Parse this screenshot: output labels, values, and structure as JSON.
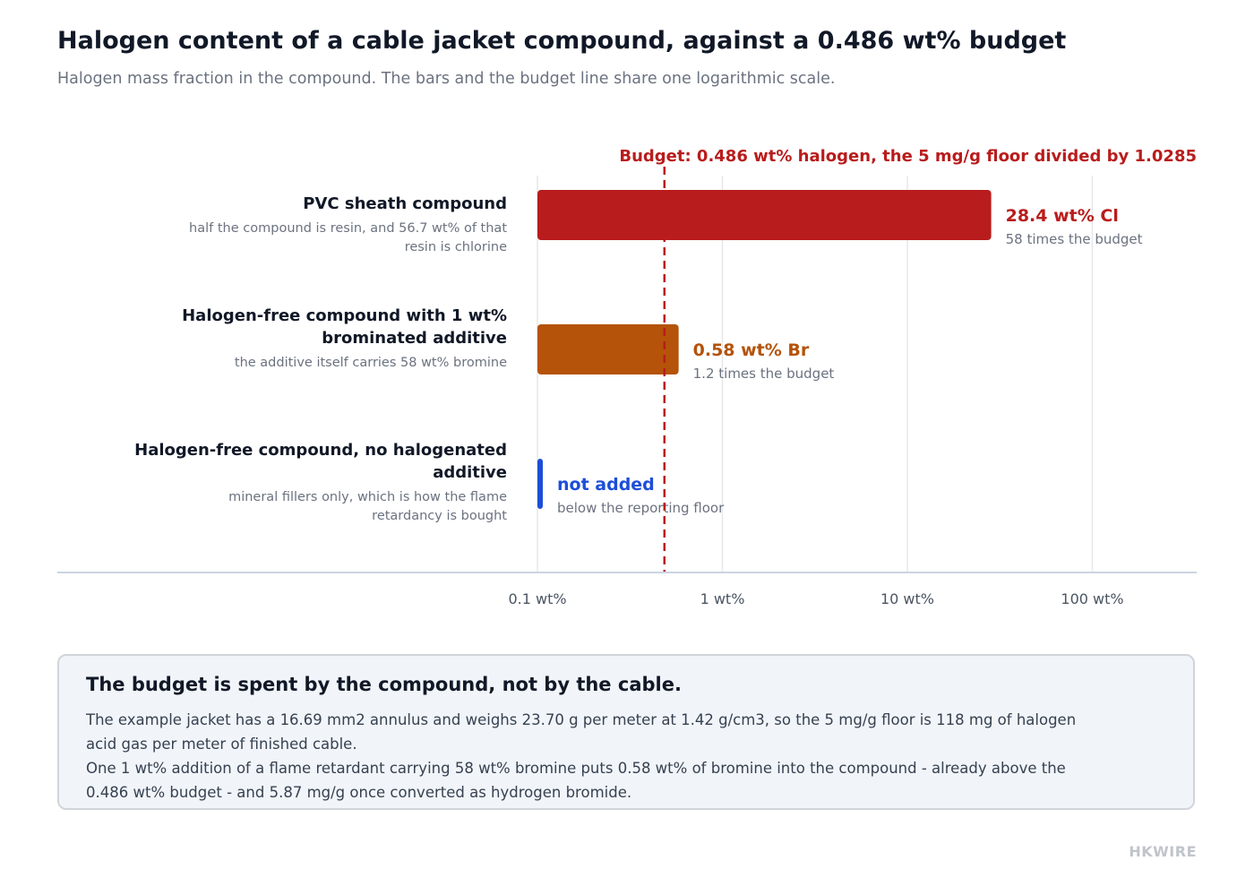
{
  "title": "Halogen content of a cable jacket compound, against a 0.486 wt% budget",
  "subtitle": "Halogen mass fraction in the compound. The bars and the budget line share one logarithmic scale.",
  "chart_data": {
    "type": "bar",
    "orientation": "horizontal",
    "xscale": "log",
    "xlim": [
      0.1,
      250
    ],
    "xticks": [
      0.1,
      1,
      10,
      100
    ],
    "xtick_labels": [
      "0.1 wt%",
      "1 wt%",
      "10 wt%",
      "100 wt%"
    ],
    "grid": true,
    "reference_line": {
      "value": 0.486,
      "label": "Budget: 0.486 wt% halogen, the 5 mg/g floor divided by 1.0285",
      "color": "#b91c1c"
    },
    "bars": [
      {
        "category": "PVC sheath compound",
        "description": [
          "half the compound is resin, and 56.7 wt% of that",
          "resin is chlorine"
        ],
        "value": 28.4,
        "value_label": "28.4 wt% Cl",
        "note": "58 times the budget",
        "color": "#b91c1c"
      },
      {
        "category": [
          "Halogen-free compound with 1 wt%",
          "brominated additive"
        ],
        "description": [
          "the additive itself carries 58 wt% bromine"
        ],
        "value": 0.58,
        "value_label": "0.58 wt% Br",
        "note": "1.2 times the budget",
        "color": "#b45309"
      },
      {
        "category": [
          "Halogen-free compound, no halogenated",
          "additive"
        ],
        "description": [
          "mineral fillers only, which is how the flame",
          "retardancy is bought"
        ],
        "value": null,
        "value_label": "not added",
        "note": "below the reporting floor",
        "color": "#1d4ed8"
      }
    ]
  },
  "note": {
    "title": "The budget is spent by the compound, not by the cable.",
    "lines": [
      "The example jacket has a 16.69 mm2 annulus and weighs 23.70 g per meter at 1.42 g/cm3, so the 5 mg/g floor is 118 mg of halogen acid gas per meter of finished cable.",
      "One 1 wt% addition of a flame retardant carrying 58 wt% bromine puts 0.58 wt% of bromine into the compound - already above the 0.486 wt% budget - and 5.87 mg/g once converted as hydrogen bromide."
    ]
  },
  "brand": "HKWIRE"
}
